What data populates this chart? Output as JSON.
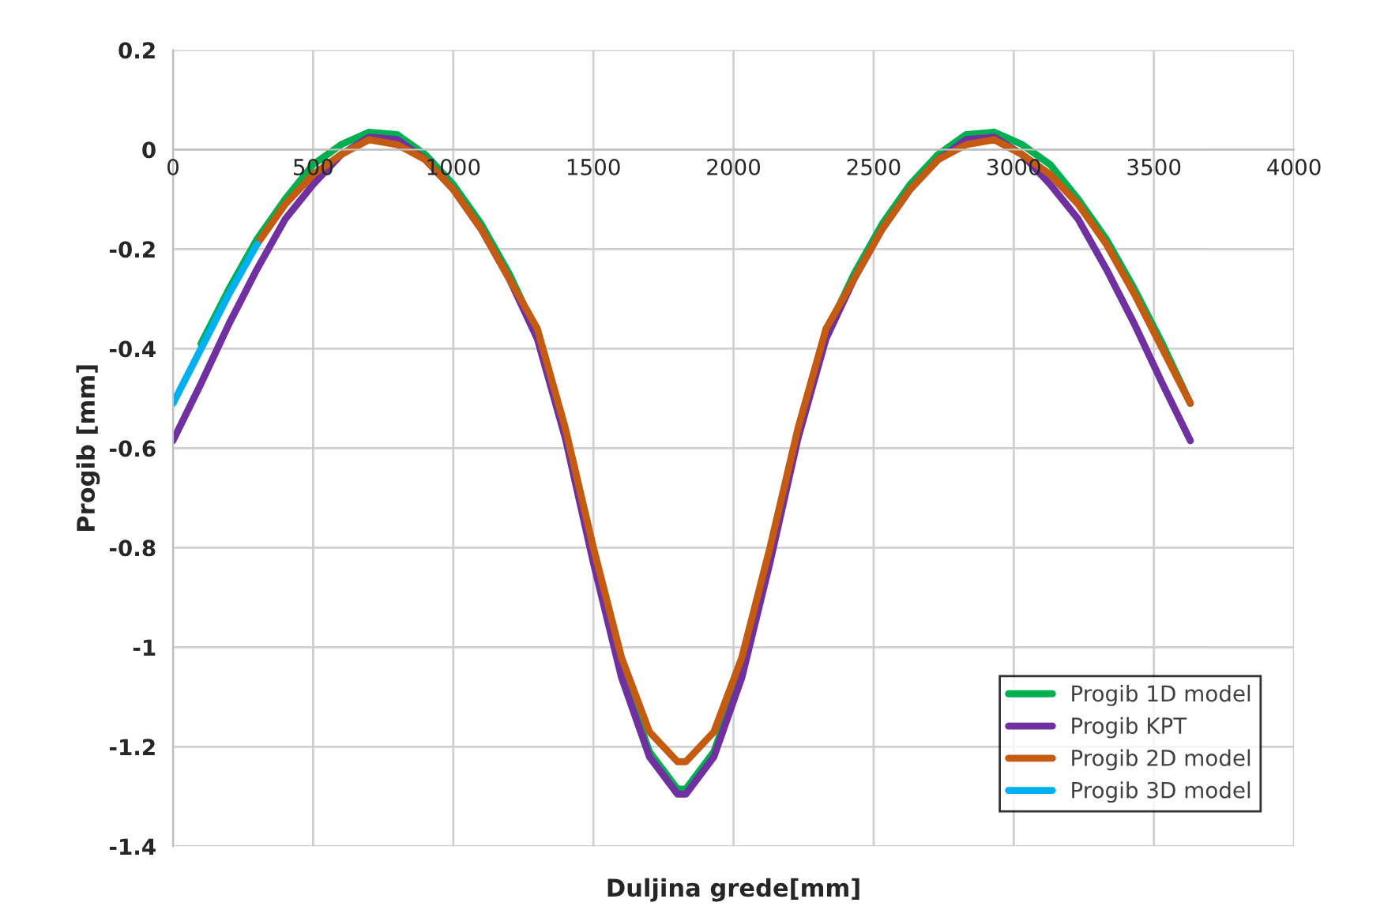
{
  "chart_data": {
    "type": "line",
    "xlabel": "Duljina grede[mm]",
    "ylabel": "Progib [mm]",
    "xlim": [
      0,
      4000
    ],
    "xticks": [
      0,
      500,
      1000,
      1500,
      2000,
      2500,
      3000,
      3500,
      4000
    ],
    "ylim": [
      -1.4,
      0.2
    ],
    "yticks": [
      0.2,
      0,
      -0.2,
      -0.4,
      -0.6,
      -0.8,
      -1,
      -1.2,
      -1.4
    ],
    "grid": true,
    "legend": "bottom right",
    "marker": "none",
    "line_style": "solid",
    "x": [
      0,
      100,
      200,
      300,
      400,
      500,
      600,
      700,
      800,
      900,
      1000,
      1100,
      1200,
      1300,
      1400,
      1500,
      1600,
      1700,
      1800,
      1815,
      1830,
      1930,
      2030,
      2130,
      2230,
      2330,
      2430,
      2530,
      2630,
      2730,
      2830,
      2930,
      3030,
      3130,
      3230,
      3330,
      3430,
      3530,
      3630
    ],
    "series": [
      {
        "name": "Progib 1D model",
        "color": "#00b050",
        "values": [
          null,
          -0.39,
          -0.28,
          -0.18,
          -0.1,
          -0.03,
          0.01,
          0.035,
          0.03,
          -0.01,
          -0.07,
          -0.15,
          -0.25,
          -0.37,
          -0.57,
          -0.82,
          -1.05,
          -1.21,
          -1.285,
          -1.285,
          -1.285,
          -1.21,
          -1.05,
          -0.82,
          -0.57,
          -0.37,
          -0.25,
          -0.15,
          -0.07,
          -0.01,
          0.03,
          0.035,
          0.01,
          -0.03,
          -0.1,
          -0.18,
          -0.28,
          -0.39,
          -0.51
        ]
      },
      {
        "name": "Progib KPT",
        "color": "#7030a0",
        "values": [
          -0.585,
          -0.47,
          -0.35,
          -0.24,
          -0.14,
          -0.07,
          -0.01,
          0.025,
          0.02,
          -0.02,
          -0.08,
          -0.16,
          -0.26,
          -0.38,
          -0.58,
          -0.83,
          -1.06,
          -1.22,
          -1.295,
          -1.295,
          -1.295,
          -1.22,
          -1.06,
          -0.83,
          -0.58,
          -0.38,
          -0.26,
          -0.16,
          -0.08,
          -0.02,
          0.02,
          0.025,
          -0.01,
          -0.07,
          -0.14,
          -0.24,
          -0.35,
          -0.47,
          -0.585
        ]
      },
      {
        "name": "Progib 2D model",
        "color": "#c55a11",
        "values": [
          null,
          null,
          null,
          -0.19,
          -0.11,
          -0.05,
          -0.01,
          0.02,
          0.01,
          -0.02,
          -0.08,
          -0.16,
          -0.26,
          -0.36,
          -0.56,
          -0.8,
          -1.02,
          -1.17,
          -1.23,
          -1.23,
          -1.23,
          -1.17,
          -1.02,
          -0.8,
          -0.56,
          -0.36,
          -0.26,
          -0.16,
          -0.08,
          -0.02,
          0.01,
          0.02,
          -0.01,
          -0.05,
          -0.11,
          -0.19,
          -0.29,
          -0.4,
          -0.51
        ]
      },
      {
        "name": "Progib 3D model",
        "color": "#00b0f0",
        "x": [
          0,
          100,
          200,
          300
        ],
        "values": [
          -0.51,
          -0.4,
          -0.29,
          -0.19
        ]
      }
    ]
  }
}
